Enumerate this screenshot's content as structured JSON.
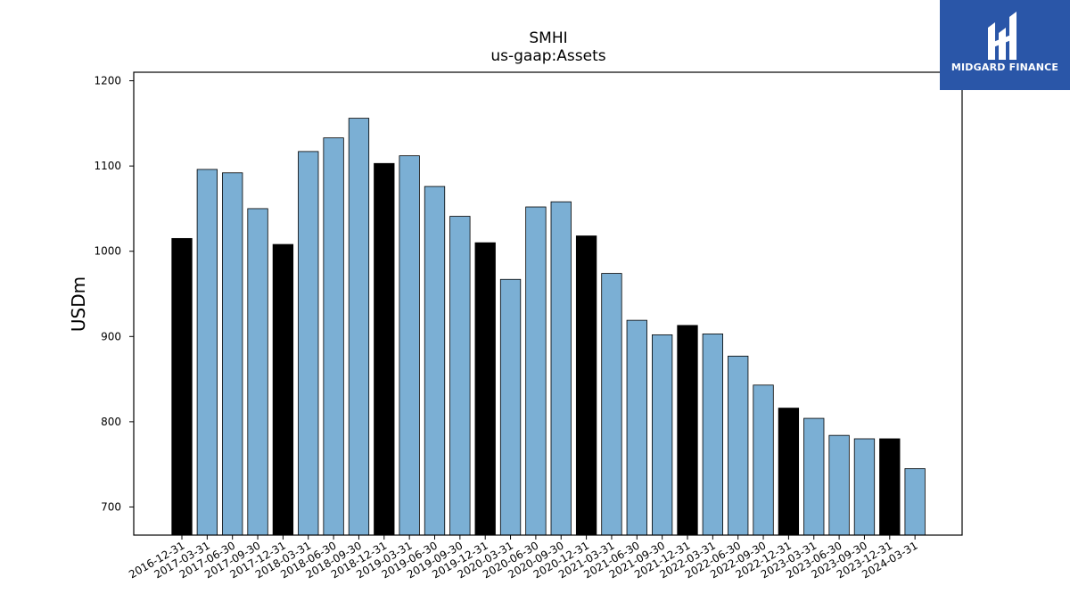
{
  "chart_data": {
    "type": "bar",
    "title": "SMHI",
    "subtitle": "us-gaap:Assets",
    "ylabel": "USDm",
    "xlabel": "",
    "ylim": [
      667,
      1210
    ],
    "yticks": [
      700,
      800,
      900,
      1000,
      1100,
      1200
    ],
    "grid": false,
    "categories": [
      "2016-12-31",
      "2017-03-31",
      "2017-06-30",
      "2017-09-30",
      "2017-12-31",
      "2018-03-31",
      "2018-06-30",
      "2018-09-30",
      "2018-12-31",
      "2019-03-31",
      "2019-06-30",
      "2019-09-30",
      "2019-12-31",
      "2020-03-31",
      "2020-06-30",
      "2020-09-30",
      "2020-12-31",
      "2021-03-31",
      "2021-06-30",
      "2021-09-30",
      "2021-12-31",
      "2022-03-31",
      "2022-06-30",
      "2022-09-30",
      "2022-12-31",
      "2023-03-31",
      "2023-06-30",
      "2023-09-30",
      "2023-12-31",
      "2024-03-31"
    ],
    "values": [
      1015,
      1096,
      1092,
      1050,
      1008,
      1117,
      1133,
      1156,
      1103,
      1112,
      1076,
      1041,
      1010,
      967,
      1052,
      1058,
      1018,
      974,
      919,
      902,
      913,
      903,
      877,
      843,
      816,
      804,
      784,
      780,
      780,
      745
    ],
    "highlight": [
      true,
      false,
      false,
      false,
      true,
      false,
      false,
      false,
      true,
      false,
      false,
      false,
      true,
      false,
      false,
      false,
      true,
      false,
      false,
      false,
      true,
      false,
      false,
      false,
      true,
      false,
      false,
      false,
      true,
      false
    ],
    "colors": {
      "normal": "#7bafd4",
      "highlight": "#000000",
      "edge": "#000000"
    }
  },
  "logo": {
    "text": "MIDGARD FINANCE",
    "background": "#2a56a8"
  }
}
